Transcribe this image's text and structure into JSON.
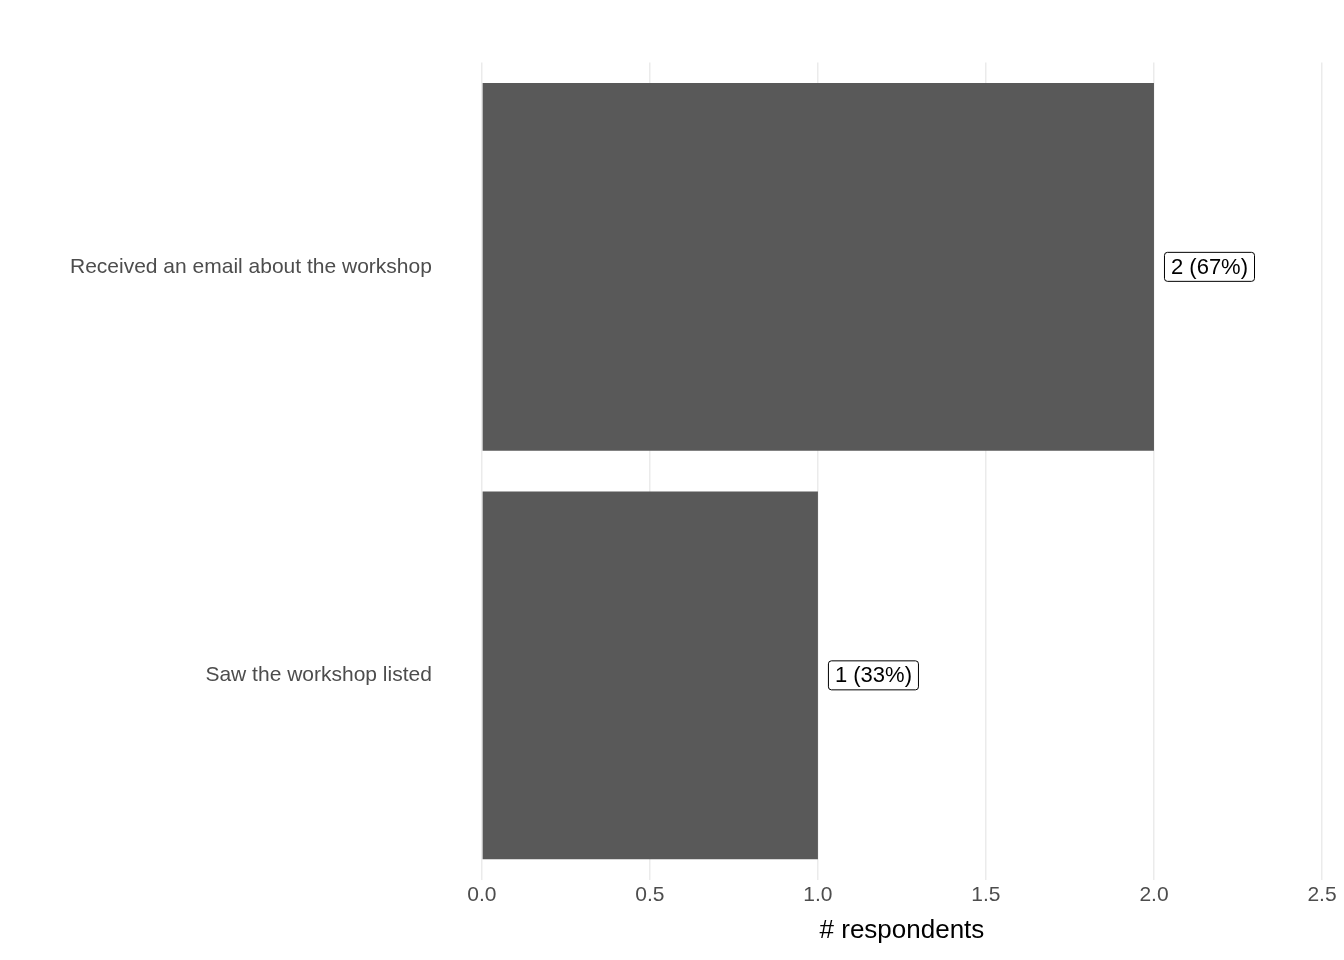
{
  "chart_data": {
    "type": "bar",
    "orientation": "horizontal",
    "xlabel": "# respondents",
    "categories": [
      "Received an email about the workshop",
      "Saw the workshop listed"
    ],
    "values": [
      2,
      1
    ],
    "color": "#595959",
    "value_labels": [
      "2 (67%)",
      "1 (33%)"
    ],
    "xlim": [
      0,
      2.5
    ],
    "xticks": [
      {
        "value": 0,
        "label": "0.0"
      },
      0.5,
      {
        "value": 1,
        "label": "1.0"
      },
      1.5,
      {
        "value": 2,
        "label": "2.0"
      },
      2.5
    ],
    "grid": "x",
    "legend": false
  }
}
